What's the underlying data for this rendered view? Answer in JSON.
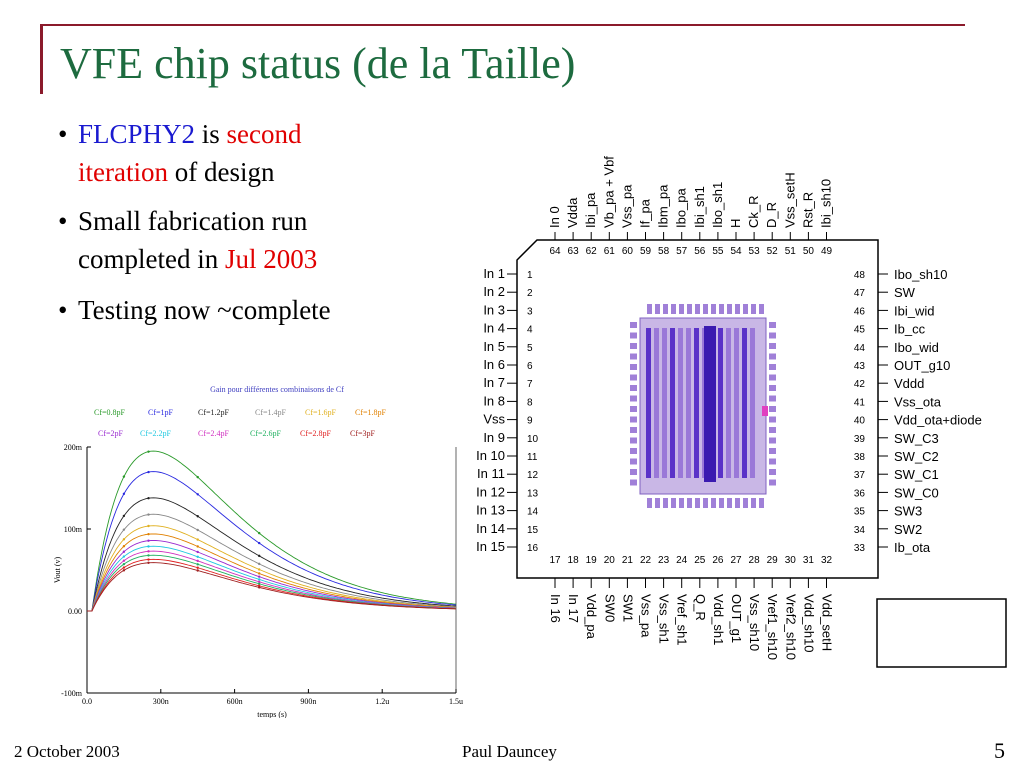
{
  "slide": {
    "title": "VFE chip status (de la Taille)",
    "bullets": [
      {
        "parts": [
          {
            "text": "FLCPHY2",
            "color": "blue"
          },
          {
            "text": " is ",
            "color": "black"
          },
          {
            "text": "second",
            "color": "red"
          }
        ],
        "line2": [
          {
            "text": "iteration",
            "color": "red"
          },
          {
            "text": " of design",
            "color": "black"
          }
        ]
      },
      {
        "parts": [
          {
            "text": "Small fabrication run",
            "color": "black"
          }
        ],
        "line2": [
          {
            "text": "completed in ",
            "color": "black"
          },
          {
            "text": "Jul 2003",
            "color": "red"
          }
        ]
      },
      {
        "parts": [
          {
            "text": "Testing now ~complete",
            "color": "black"
          }
        ],
        "line2": []
      }
    ],
    "bullet_glyph": "•",
    "footer": {
      "date": "2 October 2003",
      "author": "Paul Dauncey",
      "page": "5"
    },
    "colors": {
      "title": "#1d6b3f",
      "rule": "#8b1a2b",
      "blue": "#1a1ad0",
      "red": "#e00000"
    }
  },
  "pinout": {
    "top": {
      "numbers": [
        "64",
        "63",
        "62",
        "61",
        "60",
        "59",
        "58",
        "57",
        "56",
        "55",
        "54",
        "53",
        "52",
        "51",
        "50",
        "49"
      ],
      "labels": [
        "In 0",
        "Vdda",
        "Ibi_pa",
        "Vb_pa + Vbf",
        "Vss_pa",
        "If_pa",
        "Ibm_pa",
        "Ibo_pa",
        "Ibi_sh1",
        "Ibo_sh1",
        "H",
        "Ck_R",
        "D_R",
        "Vss_setH",
        "Rst_R",
        "Ibi_sh10"
      ]
    },
    "left": {
      "numbers": [
        "1",
        "2",
        "3",
        "4",
        "5",
        "6",
        "7",
        "8",
        "9",
        "10",
        "11",
        "12",
        "13",
        "14",
        "15",
        "16"
      ],
      "labels": [
        "In 1",
        "In 2",
        "In 3",
        "In 4",
        "In 5",
        "In 6",
        "In 7",
        "In 8",
        "Vss",
        "In 9",
        "In 10",
        "In 11",
        "In 12",
        "In 13",
        "In 14",
        "In 15"
      ]
    },
    "right": {
      "numbers": [
        "48",
        "47",
        "46",
        "45",
        "44",
        "43",
        "42",
        "41",
        "40",
        "39",
        "38",
        "37",
        "36",
        "35",
        "34",
        "33"
      ],
      "labels": [
        "Ibo_sh10",
        "SW",
        "Ibi_wid",
        "Ib_cc",
        "Ibo_wid",
        "OUT_g10",
        "Vddd",
        "Vss_ota",
        "Vdd_ota+diode",
        "SW_C3",
        "SW_C2",
        "SW_C1",
        "SW_C0",
        "SW3",
        "SW2",
        "Ib_ota"
      ]
    },
    "bottom": {
      "numbers": [
        "17",
        "18",
        "19",
        "20",
        "21",
        "22",
        "23",
        "24",
        "25",
        "26",
        "27",
        "28",
        "29",
        "30",
        "31",
        "32"
      ],
      "labels": [
        "In 16",
        "In 17",
        "Vdd_pa",
        "SW0",
        "SW1",
        "Vss_pa",
        "Vss_sh1",
        "Vref_sh1",
        "Q_R",
        "Vdd_sh1",
        "OUT_g1",
        "Vss_sh10",
        "Vref1_sh10",
        "Vref2_sh10",
        "Vdd_sh10",
        "Vdd_setH"
      ]
    }
  },
  "chart_data": {
    "type": "line",
    "title": "Gain pour différentes combinaisons de Cf",
    "xlabel": "temps (s)",
    "ylabel": "Vout (v)",
    "x_ticks": [
      "0.0",
      "300n",
      "600n",
      "900n",
      "1.2u",
      "1.5u"
    ],
    "y_ticks": [
      "200m",
      "100m",
      "0.00",
      "-100m"
    ],
    "xlim": [
      0,
      1.5e-06
    ],
    "ylim": [
      -0.1,
      0.2
    ],
    "x": [
      0,
      2e-08,
      5e-08,
      1e-07,
      1.5e-07,
      2e-07,
      2.5e-07,
      3e-07,
      4e-07,
      5e-07,
      6e-07,
      7e-07,
      8e-07,
      9e-07,
      1e-06,
      1.1e-06,
      1.2e-06,
      1.3e-06,
      1.4e-06,
      1.5e-06
    ],
    "series": [
      {
        "name": "Cf=0.8pF",
        "color": "#2a9a2a",
        "peak": 0.195
      },
      {
        "name": "Cf=1pF",
        "color": "#2a2ae0",
        "peak": 0.17
      },
      {
        "name": "Cf=1.2pF",
        "color": "#222222",
        "peak": 0.138
      },
      {
        "name": "Cf=1.4pF",
        "color": "#888888",
        "peak": 0.118
      },
      {
        "name": "Cf=1.6pF",
        "color": "#e0b020",
        "peak": 0.104
      },
      {
        "name": "Cf=1.8pF",
        "color": "#e08000",
        "peak": 0.094
      },
      {
        "name": "Cf=2pF",
        "color": "#9a2ad0",
        "peak": 0.086
      },
      {
        "name": "Cf=2.2pF",
        "color": "#20c8e0",
        "peak": 0.079
      },
      {
        "name": "Cf=2.4pF",
        "color": "#d030c0",
        "peak": 0.073
      },
      {
        "name": "Cf=2.6pF",
        "color": "#20b060",
        "peak": 0.068
      },
      {
        "name": "Cf=2.8pF",
        "color": "#e02020",
        "peak": 0.063
      },
      {
        "name": "Cf=3pF",
        "color": "#a02020",
        "peak": 0.059
      }
    ],
    "legend": "top",
    "grid": false
  }
}
